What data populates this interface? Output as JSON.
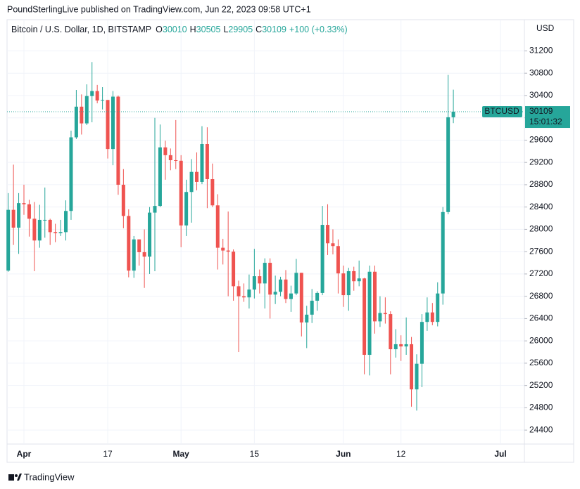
{
  "publisher": "PoundSterlingLive published on TradingView.com, Jun 22, 2023 09:58 UTC+1",
  "brand": "TradingView",
  "chart_data": {
    "type": "candlestick",
    "title": "Bitcoin / U.S. Dollar, 1D, BITSTAMP",
    "ohlc_labels": [
      "O",
      "H",
      "L",
      "C"
    ],
    "change": "+100 (+0.33%)",
    "currency": "USD",
    "symbol": "BTCUSD",
    "countdown": "15:01:32",
    "up_color": "#26a69a",
    "down_color": "#ef5350",
    "x": [
      "Mar 29",
      "Mar 30",
      "Mar 31",
      "Apr 1",
      "Apr 2",
      "Apr 3",
      "Apr 4",
      "Apr 5",
      "Apr 6",
      "Apr 7",
      "Apr 8",
      "Apr 9",
      "Apr 10",
      "Apr 11",
      "Apr 12",
      "Apr 13",
      "Apr 14",
      "Apr 15",
      "Apr 16",
      "Apr 17",
      "Apr 18",
      "Apr 19",
      "Apr 20",
      "Apr 21",
      "Apr 22",
      "Apr 23",
      "Apr 24",
      "Apr 25",
      "Apr 26",
      "Apr 27",
      "Apr 28",
      "Apr 29",
      "Apr 30",
      "May 1",
      "May 2",
      "May 3",
      "May 4",
      "May 5",
      "May 6",
      "May 7",
      "May 8",
      "May 9",
      "May 10",
      "May 11",
      "May 12",
      "May 13",
      "May 14",
      "May 15",
      "May 16",
      "May 17",
      "May 18",
      "May 19",
      "May 20",
      "May 21",
      "May 22",
      "May 23",
      "May 24",
      "May 25",
      "May 26",
      "May 27",
      "May 28",
      "May 29",
      "May 30",
      "May 31",
      "Jun 1",
      "Jun 2",
      "Jun 3",
      "Jun 4",
      "Jun 5",
      "Jun 6",
      "Jun 7",
      "Jun 8",
      "Jun 9",
      "Jun 10",
      "Jun 11",
      "Jun 12",
      "Jun 13",
      "Jun 14",
      "Jun 15",
      "Jun 16",
      "Jun 17",
      "Jun 18",
      "Jun 19",
      "Jun 20",
      "Jun 21",
      "Jun 22"
    ],
    "open": [
      27260,
      28350,
      28030,
      28470,
      28450,
      28190,
      27800,
      28170,
      28170,
      27950,
      27930,
      27950,
      28330,
      29650,
      30200,
      29900,
      30390,
      30480,
      30310,
      30320,
      29440,
      30380,
      28800,
      28240,
      27260,
      27820,
      27590,
      27510,
      28300,
      28420,
      29470,
      29330,
      29240,
      29230,
      28070,
      28670,
      29030,
      28850,
      29530,
      28900,
      28430,
      27670,
      27620,
      27600,
      26980,
      26800,
      26780,
      26920,
      27160,
      27030,
      27400,
      26830,
      26880,
      27100,
      26750,
      26850,
      27220,
      26330,
      26470,
      26720,
      26860,
      28080,
      27750,
      27700,
      27210,
      26820,
      27250,
      27070,
      27120,
      25750,
      27240,
      26350,
      26500,
      26480,
      25850,
      25940,
      25900,
      25940,
      25130,
      25590,
      26340,
      26510,
      26340,
      26850,
      28310,
      30010
    ],
    "high": [
      28650,
      29160,
      28650,
      28800,
      28530,
      28490,
      28440,
      28750,
      28190,
      28100,
      28170,
      28520,
      29770,
      30500,
      30420,
      30600,
      31000,
      30590,
      30550,
      30320,
      30480,
      30400,
      29080,
      28360,
      27880,
      27820,
      28000,
      28400,
      30000,
      29880,
      29590,
      29450,
      29960,
      29330,
      28890,
      29260,
      29380,
      29850,
      29830,
      29180,
      28630,
      27830,
      28320,
      27640,
      27080,
      27030,
      27190,
      27650,
      27280,
      27480,
      27480,
      27170,
      27150,
      27270,
      26990,
      27470,
      27220,
      26630,
      26930,
      26890,
      28420,
      28450,
      28000,
      27820,
      27350,
      27310,
      27330,
      27440,
      27130,
      27350,
      27350,
      26800,
      26780,
      26530,
      26210,
      26100,
      26420,
      26070,
      25760,
      26480,
      26780,
      26680,
      27050,
      28400,
      30770,
      30505
    ],
    "low": [
      27240,
      27720,
      27560,
      28260,
      27870,
      27250,
      27670,
      27850,
      27720,
      27770,
      27880,
      27800,
      28170,
      29620,
      29700,
      29870,
      29920,
      30260,
      30150,
      29270,
      29150,
      28620,
      28020,
      27140,
      27130,
      27350,
      26950,
      27200,
      27250,
      28400,
      28890,
      29060,
      29080,
      27680,
      27880,
      28120,
      28700,
      28810,
      28380,
      28400,
      27280,
      27370,
      26800,
      26720,
      25800,
      26700,
      26580,
      26760,
      26850,
      26580,
      26400,
      26660,
      26800,
      26680,
      26520,
      26820,
      26080,
      25870,
      26320,
      26540,
      26820,
      27540,
      27550,
      26850,
      26610,
      26540,
      26900,
      26980,
      25400,
      25380,
      26130,
      26250,
      26310,
      25400,
      25700,
      25640,
      25750,
      24820,
      24750,
      25170,
      26180,
      26280,
      26260,
      26650,
      28270,
      29905
    ],
    "close": [
      28350,
      28030,
      28470,
      28450,
      28190,
      27800,
      28170,
      28170,
      27950,
      27930,
      27950,
      28330,
      29650,
      30200,
      29900,
      30390,
      30480,
      30310,
      30320,
      29440,
      30380,
      28800,
      28240,
      27260,
      27820,
      27590,
      27510,
      28300,
      28420,
      29470,
      29330,
      29240,
      29230,
      28070,
      28670,
      29030,
      28850,
      29530,
      28900,
      28430,
      27670,
      27620,
      27600,
      26980,
      26800,
      26780,
      26920,
      27160,
      27030,
      27400,
      26830,
      26880,
      27100,
      26750,
      26850,
      27220,
      26330,
      26470,
      26720,
      26860,
      28080,
      27750,
      27700,
      27210,
      26820,
      27250,
      27070,
      27120,
      25750,
      27240,
      26350,
      26500,
      26480,
      25850,
      25940,
      25900,
      25940,
      25130,
      25590,
      26340,
      26510,
      26340,
      26850,
      28310,
      30010,
      30109
    ],
    "ylim": [
      24150,
      31760
    ],
    "yticks": [
      24400,
      24800,
      25200,
      25600,
      26000,
      26400,
      26800,
      27200,
      27600,
      28000,
      28400,
      28800,
      29200,
      29600,
      30000,
      30400,
      30800,
      31200
    ],
    "xticks": [
      {
        "value": "Apr 1",
        "label": "Apr"
      },
      {
        "value": "Apr 17",
        "label": "17"
      },
      {
        "value": "May 1",
        "label": "May"
      },
      {
        "value": "May 15",
        "label": "15"
      },
      {
        "value": "Jun 1",
        "label": "Jun"
      },
      {
        "value": "Jun 12",
        "label": "12"
      },
      {
        "value": "Jul 1",
        "label": "Jul"
      }
    ],
    "grid": true
  }
}
